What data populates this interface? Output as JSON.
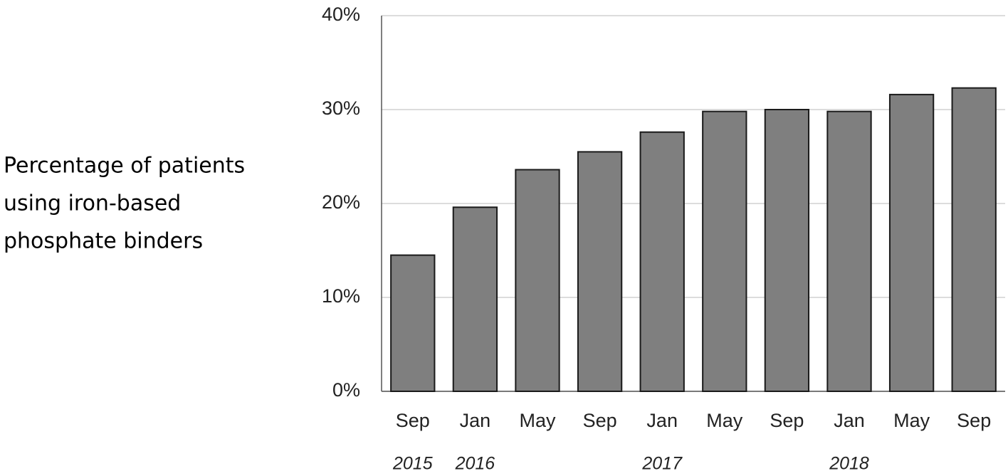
{
  "chart_data": {
    "type": "bar",
    "ylabel": [
      "Percentage of patients",
      "using iron-based",
      "phosphate binders"
    ],
    "categories": [
      "Sep",
      "Jan",
      "May",
      "Sep",
      "Jan",
      "May",
      "Sep",
      "Jan",
      "May",
      "Sep"
    ],
    "category_groups": [
      "2015",
      "2016",
      null,
      null,
      "2017",
      null,
      null,
      "2018",
      null,
      null
    ],
    "values": [
      14.5,
      19.6,
      23.6,
      25.5,
      27.6,
      29.8,
      30.0,
      29.8,
      31.6,
      32.3
    ],
    "color": "#7f7f7f",
    "ylim": [
      0,
      40
    ],
    "yticks": [
      {
        "value": 0,
        "label": "0%"
      },
      {
        "value": 10,
        "label": "10%"
      },
      {
        "value": 20,
        "label": "20%"
      },
      {
        "value": 30,
        "label": "30%"
      },
      {
        "value": 40,
        "label": "40%"
      }
    ],
    "grid": true
  }
}
